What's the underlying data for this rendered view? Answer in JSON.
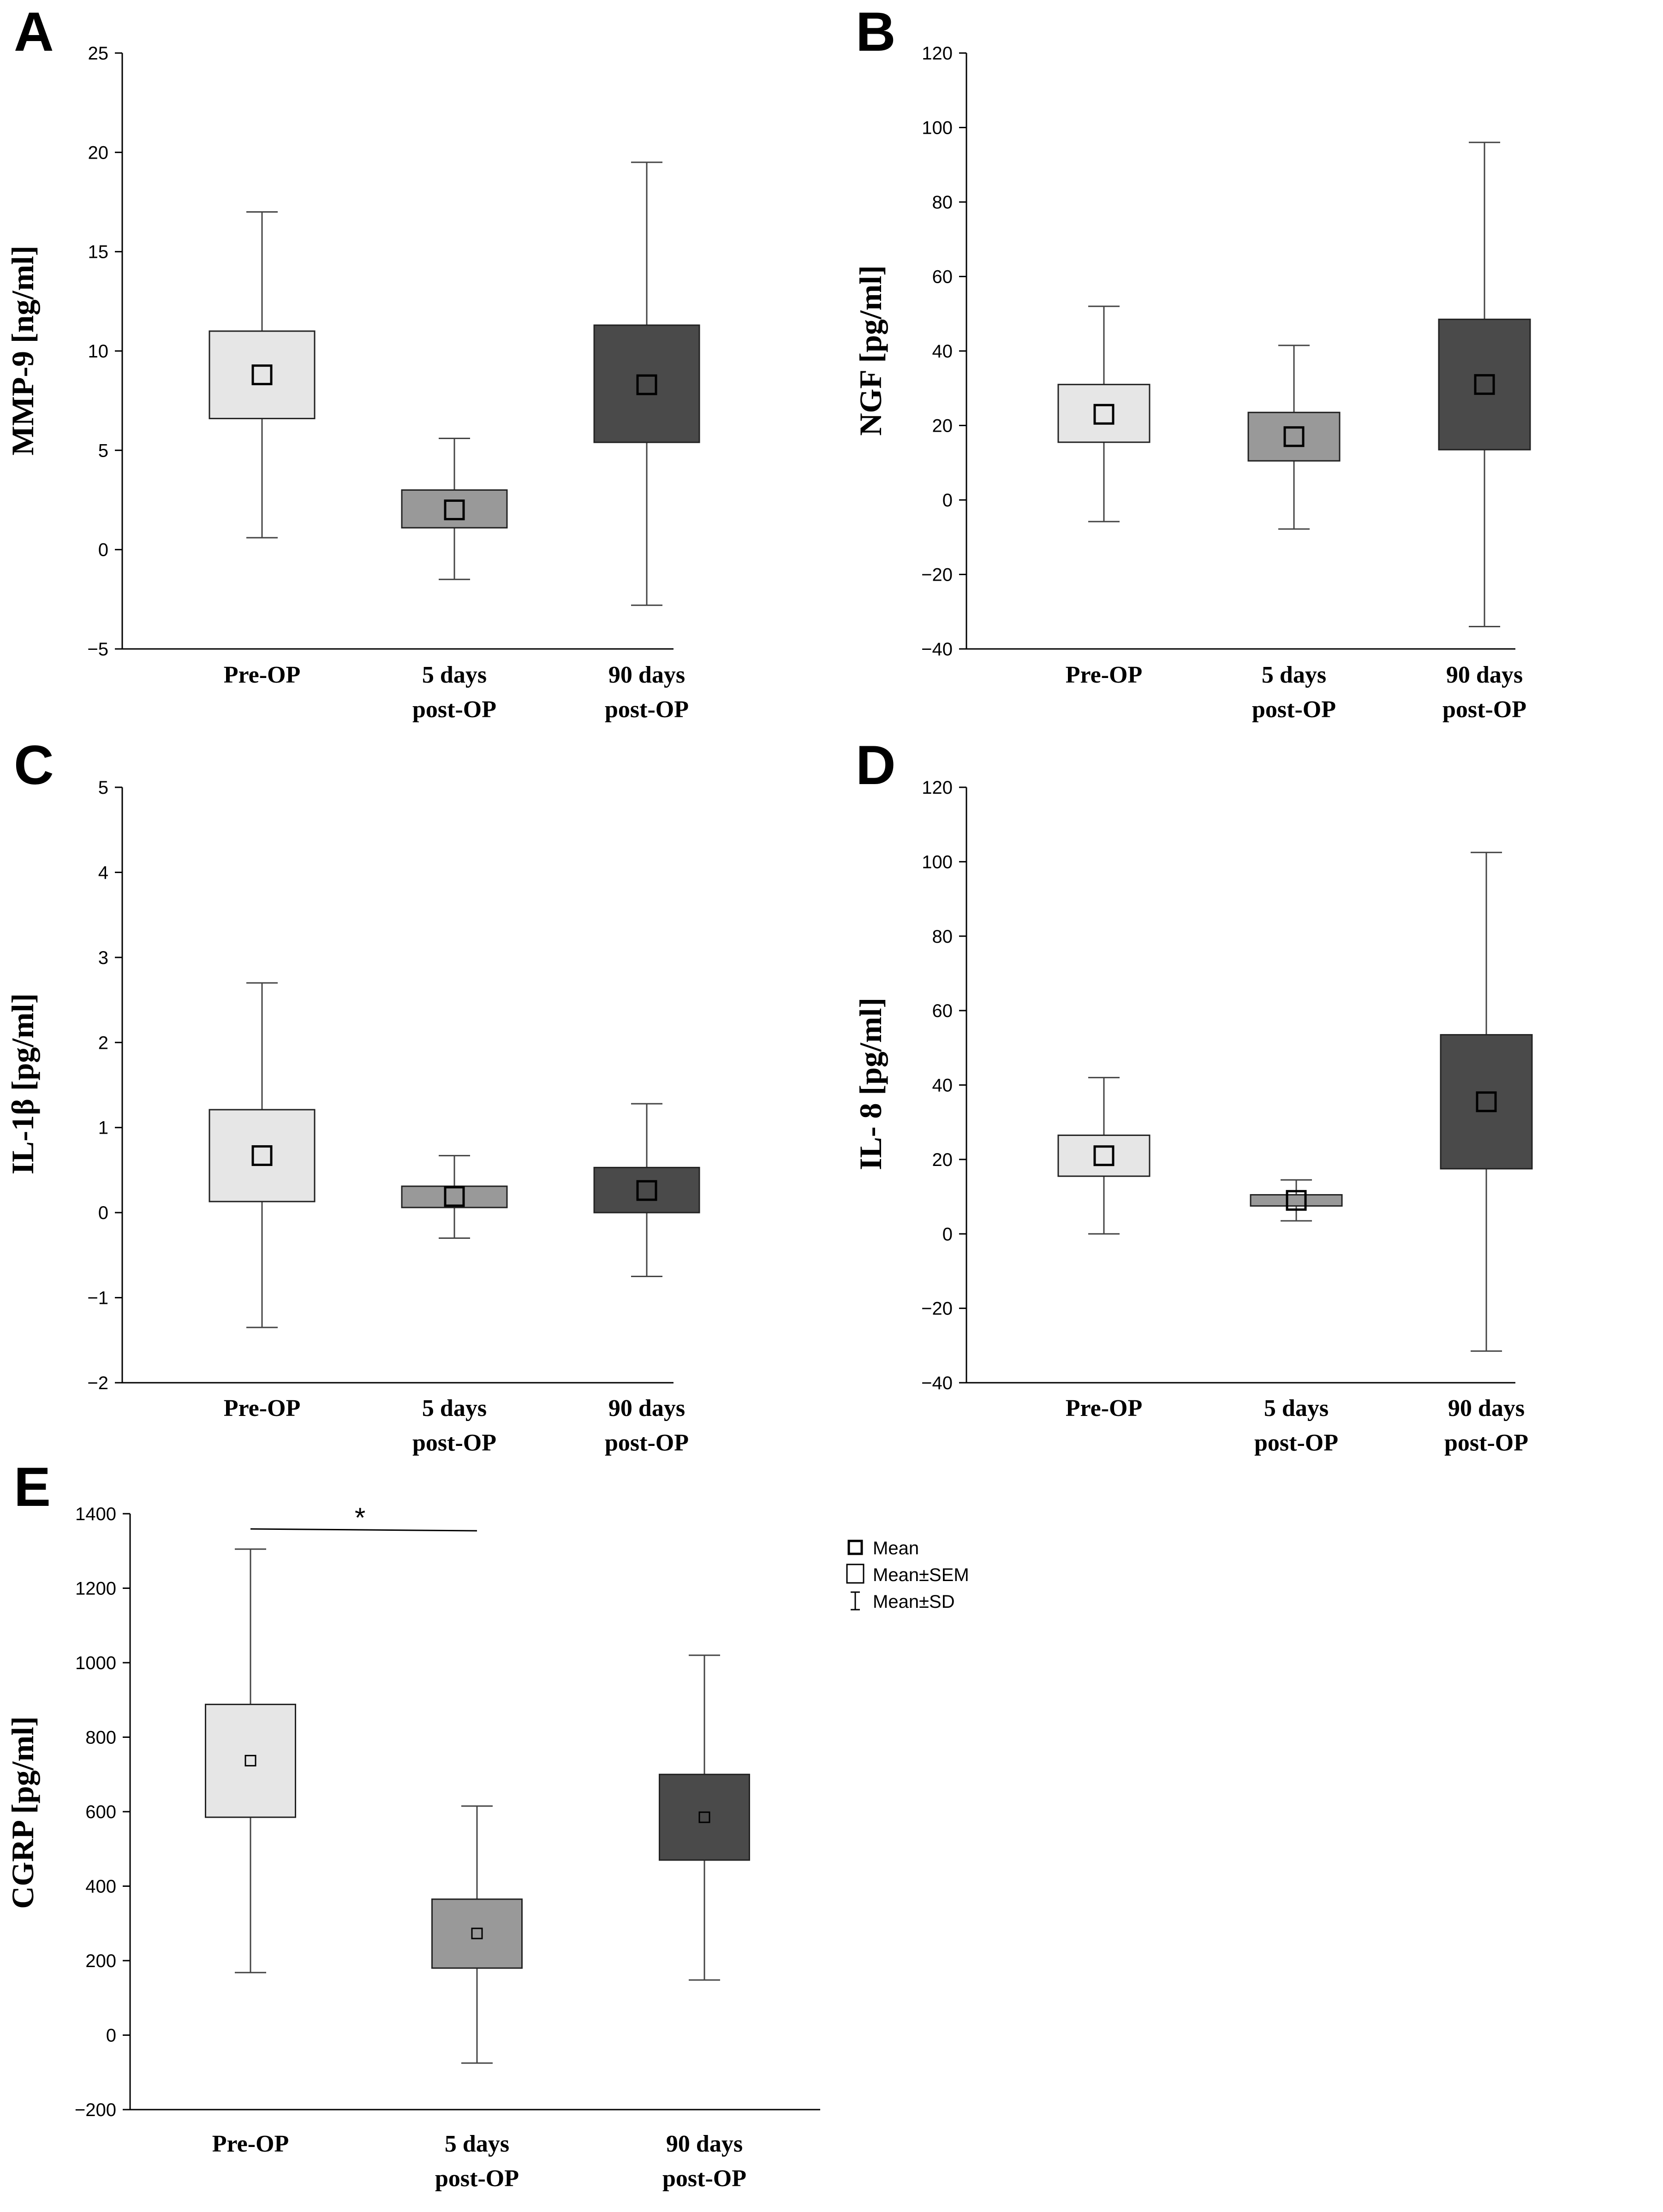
{
  "chart_data": [
    {
      "type": "box",
      "panel": "A",
      "ylabel": "MMP-9 [ng/ml]",
      "ylim": [
        -5,
        25
      ],
      "yticks": [
        25,
        20,
        15,
        10,
        5,
        0,
        -5
      ],
      "ytick_labels": [
        "25",
        "20",
        "15",
        "10",
        "5",
        "0",
        "−5"
      ],
      "categories": [
        [
          "Pre-OP"
        ],
        [
          "5 days",
          "post-OP"
        ],
        [
          "90 days",
          "post-OP"
        ]
      ],
      "series": [
        {
          "name": "Pre-OP",
          "mean": 8.8,
          "sem_low": 6.6,
          "sem_high": 11.0,
          "sd_low": 0.6,
          "sd_high": 17.0,
          "color": "#e6e6e6"
        },
        {
          "name": "5 days post-OP",
          "mean": 2.0,
          "sem_low": 1.1,
          "sem_high": 3.0,
          "sd_low": -1.5,
          "sd_high": 5.6,
          "color": "#999999"
        },
        {
          "name": "90 days post-OP",
          "mean": 8.3,
          "sem_low": 5.4,
          "sem_high": 11.3,
          "sd_low": -2.8,
          "sd_high": 19.5,
          "color": "#4a4a4a"
        }
      ]
    },
    {
      "type": "box",
      "panel": "B",
      "ylabel": "NGF [pg/ml]",
      "ylim": [
        -40,
        120
      ],
      "yticks": [
        120,
        100,
        80,
        60,
        40,
        20,
        0,
        -20,
        -40
      ],
      "ytick_labels": [
        "120",
        "100",
        "80",
        "60",
        "40",
        "20",
        "0",
        "−20",
        "−40"
      ],
      "categories": [
        [
          "Pre-OP"
        ],
        [
          "5 days",
          "post-OP"
        ],
        [
          "90 days",
          "post-OP"
        ]
      ],
      "series": [
        {
          "name": "Pre-OP",
          "mean": 23,
          "sem_low": 15.5,
          "sem_high": 31,
          "sd_low": -5.8,
          "sd_high": 52,
          "color": "#e6e6e6"
        },
        {
          "name": "5 days post-OP",
          "mean": 17,
          "sem_low": 10.5,
          "sem_high": 23.5,
          "sd_low": -7.8,
          "sd_high": 41.5,
          "color": "#999999"
        },
        {
          "name": "90 days post-OP",
          "mean": 31,
          "sem_low": 13.5,
          "sem_high": 48.5,
          "sd_low": -34,
          "sd_high": 96,
          "color": "#4a4a4a"
        }
      ]
    },
    {
      "type": "box",
      "panel": "C",
      "ylabel": "IL-1β [pg/ml]",
      "ylim": [
        -2,
        5
      ],
      "yticks": [
        5,
        4,
        3,
        2,
        1,
        0,
        -1,
        -2
      ],
      "ytick_labels": [
        "5",
        "4",
        "3",
        "2",
        "1",
        "0",
        "−1",
        "−2"
      ],
      "categories": [
        [
          "Pre-OP"
        ],
        [
          "5 days",
          "post-OP"
        ],
        [
          "90 days",
          "post-OP"
        ]
      ],
      "series": [
        {
          "name": "Pre-OP",
          "mean": 0.67,
          "sem_low": 0.13,
          "sem_high": 1.21,
          "sd_low": -1.35,
          "sd_high": 2.7,
          "color": "#e6e6e6"
        },
        {
          "name": "5 days post-OP",
          "mean": 0.19,
          "sem_low": 0.06,
          "sem_high": 0.31,
          "sd_low": -0.3,
          "sd_high": 0.67,
          "color": "#999999"
        },
        {
          "name": "90 days post-OP",
          "mean": 0.26,
          "sem_low": 0.0,
          "sem_high": 0.53,
          "sd_low": -0.75,
          "sd_high": 1.28,
          "color": "#4a4a4a"
        }
      ]
    },
    {
      "type": "box",
      "panel": "D",
      "ylabel": "IL- 8 [pg/ml]",
      "ylim": [
        -40,
        120
      ],
      "yticks": [
        120,
        100,
        80,
        60,
        40,
        20,
        0,
        -20,
        -40
      ],
      "ytick_labels": [
        "120",
        "100",
        "80",
        "60",
        "40",
        "20",
        "0",
        "−20",
        "−40"
      ],
      "categories": [
        [
          "Pre-OP"
        ],
        [
          "5 days",
          "post-OP"
        ],
        [
          "90 days",
          "post-OP"
        ]
      ],
      "series": [
        {
          "name": "Pre-OP",
          "mean": 21,
          "sem_low": 15.5,
          "sem_high": 26.5,
          "sd_low": 0,
          "sd_high": 42,
          "color": "#e6e6e6"
        },
        {
          "name": "5 days post-OP",
          "mean": 9,
          "sem_low": 7.5,
          "sem_high": 10.5,
          "sd_low": 3.5,
          "sd_high": 14.5,
          "color": "#999999"
        },
        {
          "name": "90 days post-OP",
          "mean": 35.5,
          "sem_low": 17.5,
          "sem_high": 53.5,
          "sd_low": -31.5,
          "sd_high": 102.5,
          "color": "#4a4a4a"
        }
      ]
    },
    {
      "type": "box",
      "panel": "E",
      "ylabel": "CGRP [pg/ml]",
      "ylim": [
        -200,
        1400
      ],
      "yticks": [
        1400,
        1200,
        1000,
        800,
        600,
        400,
        200,
        0,
        -200
      ],
      "ytick_labels": [
        "1400",
        "1200",
        "1000",
        "800",
        "600",
        "400",
        "200",
        "0",
        "−200"
      ],
      "categories": [
        [
          "Pre-OP"
        ],
        [
          "5 days",
          "post-OP"
        ],
        [
          "90 days",
          "post-OP"
        ]
      ],
      "series": [
        {
          "name": "Pre-OP",
          "mean": 737,
          "sem_low": 585,
          "sem_high": 888,
          "sd_low": 168,
          "sd_high": 1305,
          "color": "#e6e6e6"
        },
        {
          "name": "5 days post-OP",
          "mean": 273,
          "sem_low": 180,
          "sem_high": 365,
          "sd_low": -75,
          "sd_high": 615,
          "color": "#999999"
        },
        {
          "name": "90 days post-OP",
          "mean": 585,
          "sem_low": 470,
          "sem_high": 700,
          "sd_low": 148,
          "sd_high": 1020,
          "color": "#4a4a4a"
        }
      ],
      "significance": {
        "from": 0,
        "to": 1,
        "label": "*"
      }
    }
  ],
  "legend": {
    "mean": "Mean",
    "sem": "Mean±SEM",
    "sd": "Mean±SD"
  }
}
